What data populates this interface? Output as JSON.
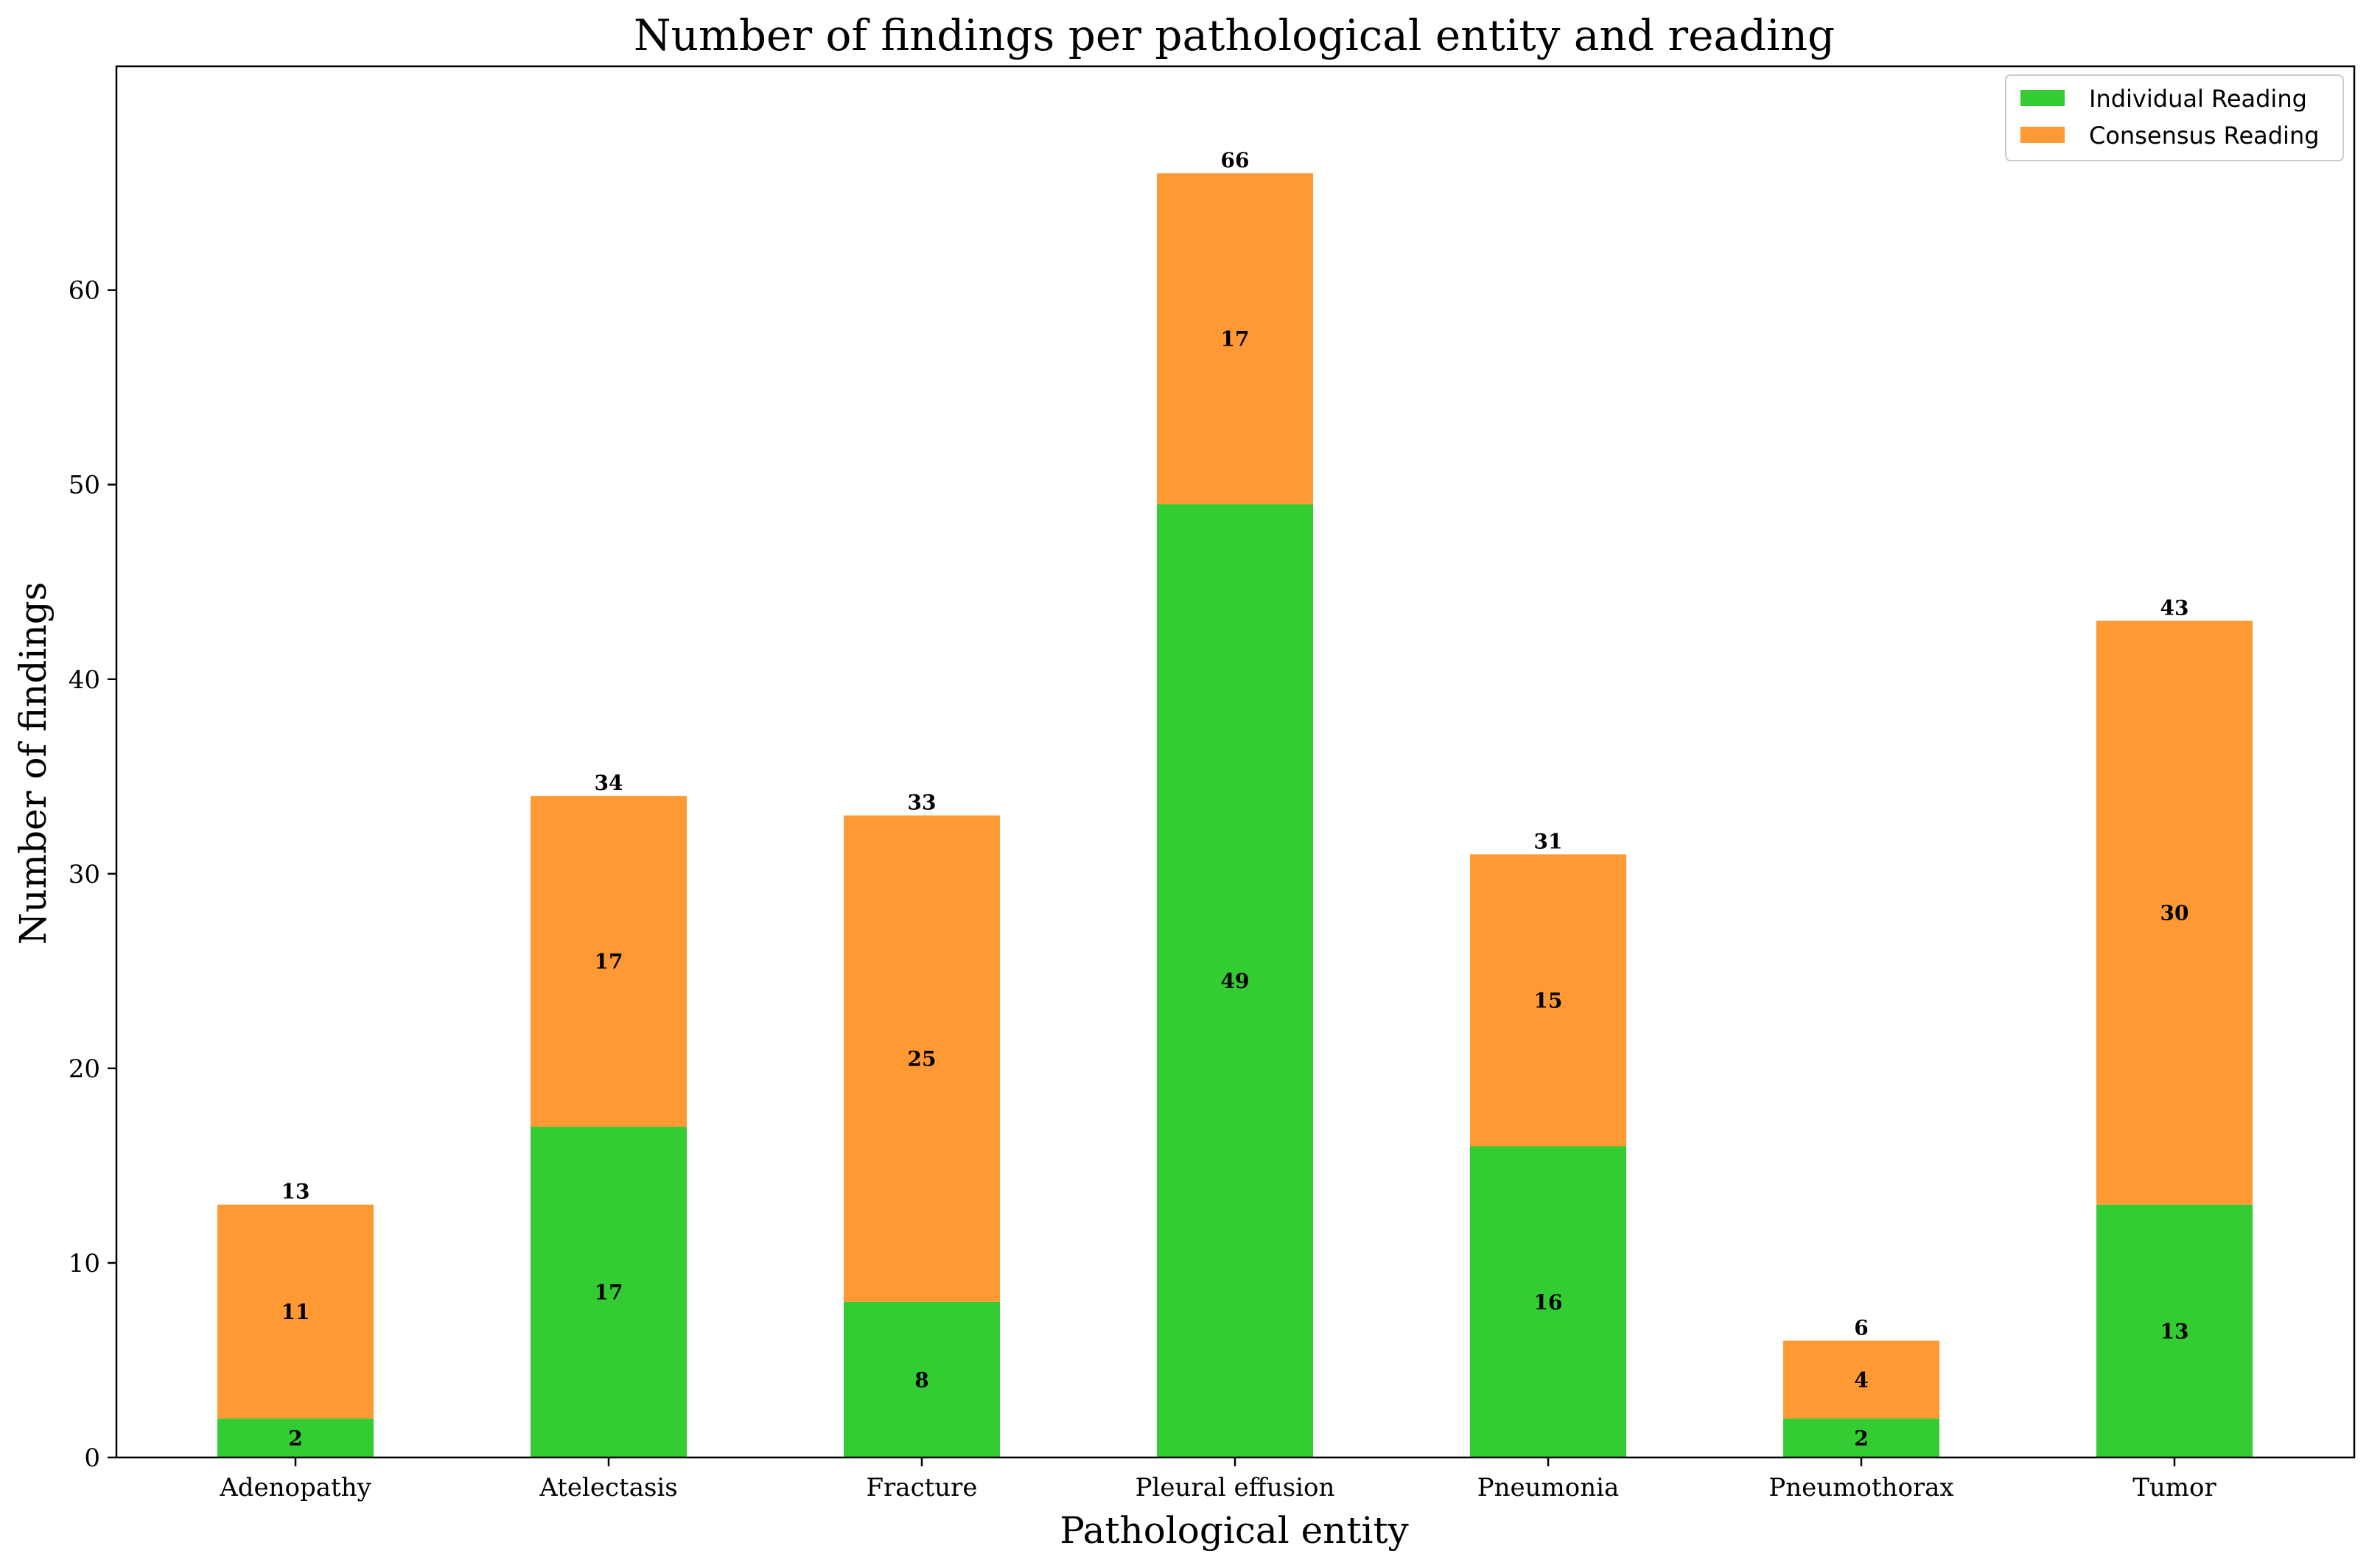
{
  "chart_data": {
    "type": "bar",
    "stacked": true,
    "title": "Number of findings per pathological entity and reading",
    "xlabel": "Pathological entity",
    "ylabel": "Number of findings",
    "categories": [
      "Adenopathy",
      "Atelectasis",
      "Fracture",
      "Pleural effusion",
      "Pneumonia",
      "Pneumothorax",
      "Tumor"
    ],
    "series": [
      {
        "name": "Individual Reading",
        "color": "#33cc33",
        "values": [
          2,
          17,
          8,
          49,
          16,
          2,
          13
        ]
      },
      {
        "name": "Consensus Reading",
        "color": "#ff9933",
        "values": [
          11,
          17,
          25,
          17,
          15,
          4,
          30
        ]
      }
    ],
    "totals": [
      13,
      34,
      33,
      66,
      31,
      6,
      43
    ],
    "ylim": [
      0,
      71.5
    ],
    "yticks": [
      0,
      10,
      20,
      30,
      40,
      50,
      60
    ],
    "grid": false,
    "legend_position": "top-right"
  }
}
